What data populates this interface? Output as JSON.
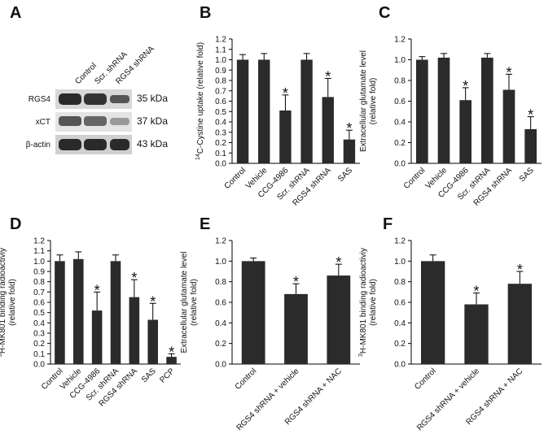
{
  "panel_a": {
    "panel": "A",
    "columns": [
      "Control",
      "Scr. shRNA",
      "RGS4 shRNA"
    ],
    "rows": [
      {
        "name": "RGS4",
        "size": "35 kDa"
      },
      {
        "name": "xCT",
        "size": "37 kDa"
      },
      {
        "name": "β-actin",
        "size": "43 kDa"
      }
    ]
  },
  "chart_data": [
    {
      "type": "bar",
      "panel": "B",
      "ylabel_sup": "14",
      "ylabel": [
        "C-Cystine uptake (relative fold)"
      ],
      "categories": [
        "Control",
        "Vehicle",
        "CCG-4986",
        "Scr. shRNA",
        "RGS4 shRNA",
        "SAS"
      ],
      "values": [
        1.0,
        1.0,
        0.51,
        1.0,
        0.64,
        0.23
      ],
      "errors": [
        0.05,
        0.06,
        0.15,
        0.06,
        0.18,
        0.09
      ],
      "significance": [
        null,
        null,
        "*",
        null,
        "*",
        "*"
      ],
      "color": "#2b2b2b",
      "ylim": [
        0,
        1.2
      ],
      "yticks": [
        {
          "value": 0,
          "label": "0.0"
        },
        0.1,
        0.2,
        0.3,
        0.4,
        0.5,
        0.6,
        0.7,
        0.8,
        0.9,
        {
          "value": 1,
          "label": "1.0"
        },
        1.1,
        1.2
      ]
    },
    {
      "type": "bar",
      "panel": "C",
      "ylabel": [
        "Extracellular glutamate level",
        "(relative fold)"
      ],
      "categories": [
        "Control",
        "Vehicle",
        "CCG-4986",
        "Scr. shRNA",
        "RGS4 shRNA",
        "SAS"
      ],
      "values": [
        1.0,
        1.02,
        0.61,
        1.02,
        0.71,
        0.33
      ],
      "errors": [
        0.03,
        0.04,
        0.12,
        0.04,
        0.15,
        0.12
      ],
      "significance": [
        null,
        null,
        "*",
        null,
        "*",
        "*"
      ],
      "color": "#2b2b2b",
      "ylim": [
        0,
        1.2
      ],
      "yticks": [
        {
          "value": 0,
          "label": "0.0"
        },
        0.2,
        0.4,
        0.6,
        0.8,
        {
          "value": 1,
          "label": "1.0"
        },
        1.2
      ]
    },
    {
      "type": "bar",
      "panel": "D",
      "ylabel_sup": "3",
      "ylabel": [
        "H-MK801 binding radioactiviy",
        "(relative fold)"
      ],
      "categories": [
        "Control",
        "Vehicle",
        "CCG-4986",
        "Scr. shRNA",
        "RGS4 shRNA",
        "SAS",
        "PCP"
      ],
      "values": [
        1.0,
        1.02,
        0.52,
        1.0,
        0.65,
        0.43,
        0.07
      ],
      "errors": [
        0.06,
        0.07,
        0.18,
        0.06,
        0.17,
        0.16,
        0.03
      ],
      "significance": [
        null,
        null,
        "*",
        null,
        "*",
        "*",
        "*"
      ],
      "color": "#2b2b2b",
      "ylim": [
        0,
        1.2
      ],
      "yticks": [
        {
          "value": 0,
          "label": "0.0"
        },
        0.1,
        0.2,
        0.3,
        0.4,
        0.5,
        0.6,
        0.7,
        0.8,
        0.9,
        {
          "value": 1,
          "label": "1.0"
        },
        1.1,
        1.2
      ]
    },
    {
      "type": "bar",
      "panel": "E",
      "ylabel": [
        "Extracellular glutamate level",
        "(relative fold)"
      ],
      "categories": [
        "Control",
        "RGS4 shRNA + vehicle",
        "RGS4 shRNA + NAC"
      ],
      "values": [
        1.0,
        0.68,
        0.86
      ],
      "errors": [
        0.03,
        0.1,
        0.11
      ],
      "significance": [
        null,
        "*",
        "*"
      ],
      "color": "#2b2b2b",
      "ylim": [
        0,
        1.2
      ],
      "yticks": [
        {
          "value": 0,
          "label": "0.0"
        },
        0.2,
        0.4,
        0.6,
        0.8,
        {
          "value": 1,
          "label": "1.0"
        },
        1.2
      ]
    },
    {
      "type": "bar",
      "panel": "F",
      "ylabel_sup": "3",
      "ylabel": [
        "H-MK801 binding radioactiviy",
        "(relative fold)"
      ],
      "categories": [
        "Control",
        "RGS4 shRNA + vehicle",
        "RGS4 shRNA + NAC"
      ],
      "values": [
        1.0,
        0.58,
        0.78
      ],
      "errors": [
        0.06,
        0.11,
        0.12
      ],
      "significance": [
        null,
        "*",
        "*"
      ],
      "color": "#2b2b2b",
      "ylim": [
        0,
        1.2
      ],
      "yticks": [
        {
          "value": 0,
          "label": "0.0"
        },
        0.2,
        0.4,
        0.6,
        0.8,
        {
          "value": 1,
          "label": "1.0"
        },
        1.2
      ]
    }
  ]
}
